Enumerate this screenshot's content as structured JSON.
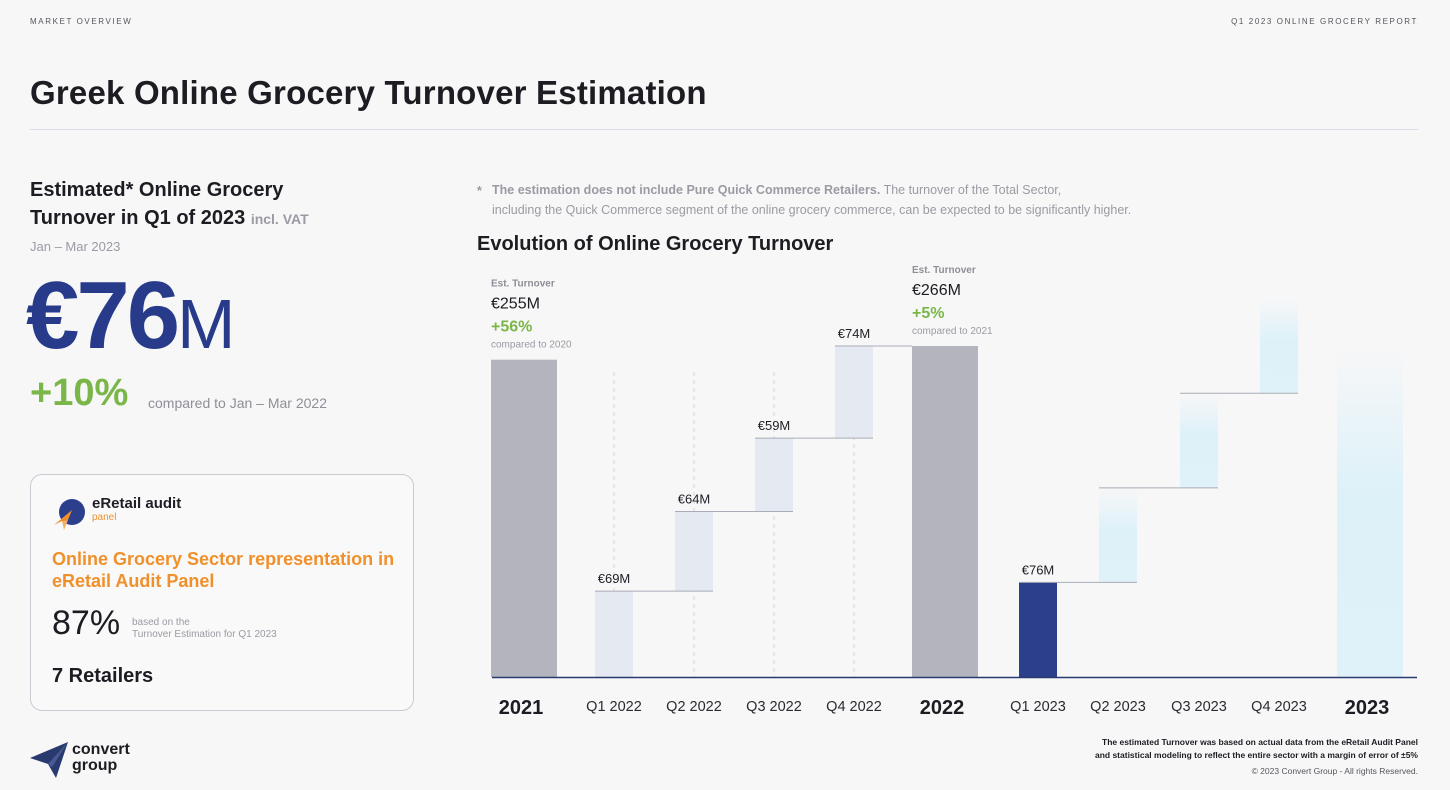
{
  "header": {
    "kicker_left": "MARKET OVERVIEW",
    "kicker_right": "Q1 2023 ONLINE GROCERY REPORT",
    "title": "Greek Online Grocery Turnover Estimation"
  },
  "estimate": {
    "heading_line1": "Estimated* Online Grocery",
    "heading_line2": "Turnover in Q1 of 2023",
    "heading_suffix": "incl. VAT",
    "period": "Jan – Mar 2023",
    "value_main": "€76",
    "value_unit": "M",
    "growth": "+10%",
    "growth_note": "compared to Jan – Mar 2022"
  },
  "panel": {
    "brand": "eRetail audit",
    "brand_sub": "panel",
    "heading": "Online Grocery Sector representation in eRetail Audit Panel",
    "percent": "87%",
    "percent_note_line1": "based on the",
    "percent_note_line2": "Turnover Estimation for Q1 2023",
    "retailers": "7 Retailers"
  },
  "footnote": {
    "star": "*",
    "lead": "The estimation does not include Pure Quick Commerce Retailers.",
    "rest": "The turnover of the Total Sector,",
    "line2": "including the Quick Commerce segment of the online grocery commerce, can be expected to be significantly higher."
  },
  "chart_title": "Evolution of Online Grocery Turnover",
  "footer": {
    "brand_line1": "convert",
    "brand_line2": "group",
    "disclaimer_line1": "The estimated Turnover was based on actual data from the eRetail Audit Panel",
    "disclaimer_line2": "and statistical modeling to reflect the entire sector with a margin of error of ±5%",
    "copyright": "© 2023 Convert Group - All rights Reserved."
  },
  "chart_data": {
    "type": "bar",
    "subtype": "waterfall",
    "unit": "€M",
    "categories": [
      "2021",
      "Q1 2022",
      "Q2 2022",
      "Q3 2022",
      "Q4 2022",
      "2022",
      "Q1 2023",
      "Q2 2023",
      "Q3 2023",
      "Q4 2023",
      "2023"
    ],
    "values": [
      255,
      69,
      64,
      59,
      74,
      266,
      76,
      null,
      null,
      null,
      null
    ],
    "labels": [
      "",
      "€69M",
      "€64M",
      "€59M",
      "€74M",
      "",
      "€76M",
      "",
      "",
      "",
      ""
    ],
    "kinds": [
      "total",
      "step",
      "step",
      "step",
      "step",
      "total",
      "step",
      "projected",
      "projected",
      "projected",
      "projected-total"
    ],
    "annual_annotations": [
      {
        "category": "2021",
        "label": "Est. Turnover",
        "value": "€255M",
        "change": "+56%",
        "note": "compared to 2020"
      },
      {
        "category": "2022",
        "label": "Est. Turnover",
        "value": "€266M",
        "change": "+5%",
        "note": "compared to 2021"
      }
    ],
    "ylim": [
      0,
      266
    ],
    "grid": false,
    "colors": {
      "total": "#b3b4be",
      "step": "#e5e9f1",
      "current": "#2b3f8d",
      "projected": "#ddf1f9",
      "connector": "#a9acb6",
      "axis": "#283a6e",
      "positive": "#7ab648"
    }
  }
}
